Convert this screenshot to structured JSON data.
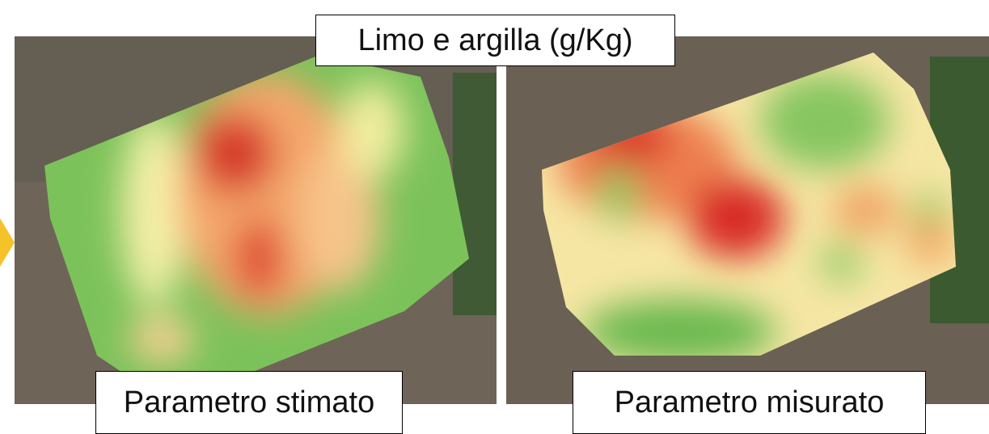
{
  "title": "Limo e argilla (g/Kg)",
  "panels": [
    {
      "label": "Parametro stimato"
    },
    {
      "label": "Parametro misurato"
    }
  ]
}
